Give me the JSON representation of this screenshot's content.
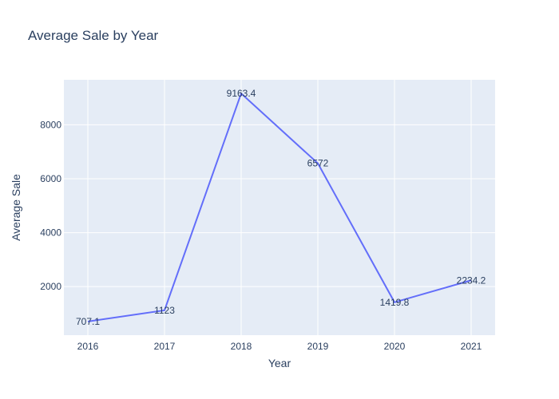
{
  "chart_data": {
    "type": "line",
    "title": "Average Sale by Year",
    "xlabel": "Year",
    "ylabel": "Average Sale",
    "x": [
      "2016",
      "2017",
      "2018",
      "2019",
      "2020",
      "2021"
    ],
    "series": [
      {
        "values": [
          707.1,
          1123,
          9163.4,
          6572,
          1419.8,
          2234.2
        ],
        "labels": [
          "707.1",
          "1123",
          "9163.4",
          "6572",
          "1419.8",
          "2234.2"
        ]
      }
    ],
    "y_ticks": [
      2000,
      4000,
      6000,
      8000
    ],
    "y_tick_labels": [
      "2000",
      "4000",
      "6000",
      "8000"
    ],
    "ylim": [
      200,
      9670
    ],
    "grid": true,
    "legend": "none",
    "colors": {
      "line": "#636efa",
      "plot_background": "#e5ecf6",
      "grid": "#ffffff",
      "text": "#2a3f5f"
    }
  }
}
